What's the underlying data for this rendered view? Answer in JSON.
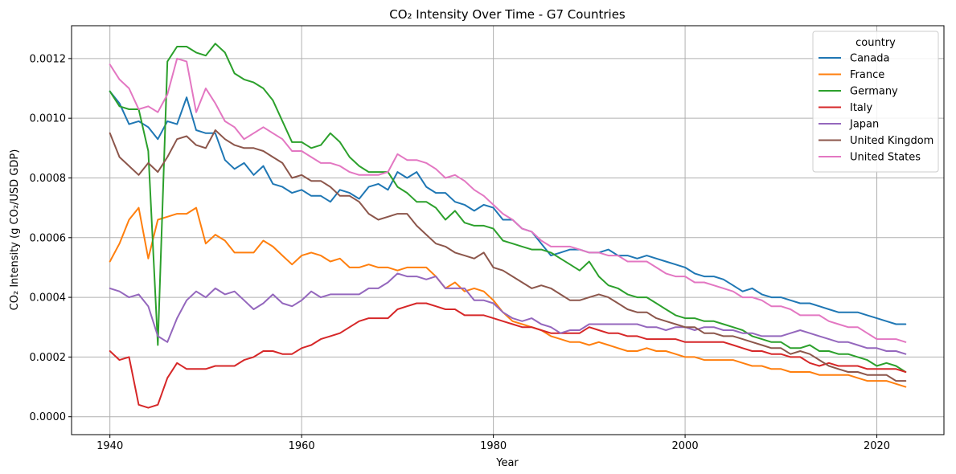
{
  "chart_data": {
    "type": "line",
    "title": "CO₂ Intensity Over Time - G7 Countries",
    "xlabel": "Year",
    "ylabel": "CO₂ Intensity (g CO₂/USD GDP)",
    "xlim": [
      1936,
      2027
    ],
    "ylim": [
      -6e-05,
      0.00131
    ],
    "xticks": [
      1940,
      1960,
      1980,
      2000,
      2020
    ],
    "yticks": [
      0.0,
      0.0002,
      0.0004,
      0.0006,
      0.0008,
      0.001,
      0.0012
    ],
    "ytick_labels": [
      "0.0000",
      "0.0002",
      "0.0004",
      "0.0006",
      "0.0008",
      "0.0010",
      "0.0012"
    ],
    "grid": true,
    "legend": {
      "title": "country",
      "placement": "top-right"
    },
    "x": [
      1940,
      1941,
      1942,
      1943,
      1944,
      1945,
      1946,
      1947,
      1948,
      1949,
      1950,
      1951,
      1952,
      1953,
      1954,
      1955,
      1956,
      1957,
      1958,
      1959,
      1960,
      1961,
      1962,
      1963,
      1964,
      1965,
      1966,
      1967,
      1968,
      1969,
      1970,
      1971,
      1972,
      1973,
      1974,
      1975,
      1976,
      1977,
      1978,
      1979,
      1980,
      1981,
      1982,
      1983,
      1984,
      1985,
      1986,
      1987,
      1988,
      1989,
      1990,
      1991,
      1992,
      1993,
      1994,
      1995,
      1996,
      1997,
      1998,
      1999,
      2000,
      2001,
      2002,
      2003,
      2004,
      2005,
      2006,
      2007,
      2008,
      2009,
      2010,
      2011,
      2012,
      2013,
      2014,
      2015,
      2016,
      2017,
      2018,
      2019,
      2020,
      2021,
      2022,
      2023
    ],
    "series": [
      {
        "name": "Canada",
        "color": "#1f77b4",
        "values": [
          0.00109,
          0.00105,
          0.00098,
          0.00099,
          0.00097,
          0.00093,
          0.00099,
          0.00098,
          0.00107,
          0.00096,
          0.00095,
          0.00095,
          0.00086,
          0.00083,
          0.00085,
          0.00081,
          0.00084,
          0.00078,
          0.00077,
          0.00075,
          0.00076,
          0.00074,
          0.00074,
          0.00072,
          0.00076,
          0.00075,
          0.00073,
          0.00077,
          0.00078,
          0.00076,
          0.00082,
          0.0008,
          0.00082,
          0.00077,
          0.00075,
          0.00075,
          0.00072,
          0.00071,
          0.00069,
          0.00071,
          0.0007,
          0.00066,
          0.00066,
          0.00063,
          0.00062,
          0.00058,
          0.00054,
          0.00055,
          0.00056,
          0.00056,
          0.00055,
          0.00055,
          0.00056,
          0.00054,
          0.00054,
          0.00053,
          0.00054,
          0.00053,
          0.00052,
          0.00051,
          0.0005,
          0.00048,
          0.00047,
          0.00047,
          0.00046,
          0.00044,
          0.00042,
          0.00043,
          0.00041,
          0.0004,
          0.0004,
          0.00039,
          0.00038,
          0.00038,
          0.00037,
          0.00036,
          0.00035,
          0.00035,
          0.00035,
          0.00034,
          0.00033,
          0.00032,
          0.00031,
          0.00031
        ]
      },
      {
        "name": "France",
        "color": "#ff7f0e",
        "values": [
          0.00052,
          0.00058,
          0.00066,
          0.0007,
          0.00053,
          0.00066,
          0.00067,
          0.00068,
          0.00068,
          0.0007,
          0.00058,
          0.00061,
          0.00059,
          0.00055,
          0.00055,
          0.00055,
          0.00059,
          0.00057,
          0.00054,
          0.00051,
          0.00054,
          0.00055,
          0.00054,
          0.00052,
          0.00053,
          0.0005,
          0.0005,
          0.00051,
          0.0005,
          0.0005,
          0.00049,
          0.0005,
          0.0005,
          0.0005,
          0.00047,
          0.00043,
          0.00045,
          0.00042,
          0.00043,
          0.00042,
          0.00039,
          0.00035,
          0.00032,
          0.00031,
          0.0003,
          0.00029,
          0.00027,
          0.00026,
          0.00025,
          0.00025,
          0.00024,
          0.00025,
          0.00024,
          0.00023,
          0.00022,
          0.00022,
          0.00023,
          0.00022,
          0.00022,
          0.00021,
          0.0002,
          0.0002,
          0.00019,
          0.00019,
          0.00019,
          0.00019,
          0.00018,
          0.00017,
          0.00017,
          0.00016,
          0.00016,
          0.00015,
          0.00015,
          0.00015,
          0.00014,
          0.00014,
          0.00014,
          0.00014,
          0.00013,
          0.00012,
          0.00012,
          0.00012,
          0.00011,
          0.0001
        ]
      },
      {
        "name": "Germany",
        "color": "#2ca02c",
        "values": [
          0.00109,
          0.00104,
          0.00103,
          0.00103,
          0.00089,
          0.00024,
          0.00119,
          0.00124,
          0.00124,
          0.00122,
          0.00121,
          0.00125,
          0.00122,
          0.00115,
          0.00113,
          0.00112,
          0.0011,
          0.00106,
          0.00099,
          0.00092,
          0.00092,
          0.0009,
          0.00091,
          0.00095,
          0.00092,
          0.00087,
          0.00084,
          0.00082,
          0.00082,
          0.00082,
          0.00077,
          0.00075,
          0.00072,
          0.00072,
          0.0007,
          0.00066,
          0.00069,
          0.00065,
          0.00064,
          0.00064,
          0.00063,
          0.00059,
          0.00058,
          0.00057,
          0.00056,
          0.00056,
          0.00055,
          0.00053,
          0.00051,
          0.00049,
          0.00052,
          0.00047,
          0.00044,
          0.00043,
          0.00041,
          0.0004,
          0.0004,
          0.00038,
          0.00036,
          0.00034,
          0.00033,
          0.00033,
          0.00032,
          0.00032,
          0.00031,
          0.0003,
          0.00029,
          0.00027,
          0.00026,
          0.00025,
          0.00025,
          0.00023,
          0.00023,
          0.00024,
          0.00022,
          0.00022,
          0.00021,
          0.00021,
          0.0002,
          0.00019,
          0.00017,
          0.00018,
          0.00017,
          0.00015
        ]
      },
      {
        "name": "Italy",
        "color": "#d62728",
        "values": [
          0.00022,
          0.00019,
          0.0002,
          4e-05,
          3e-05,
          4e-05,
          0.00013,
          0.00018,
          0.00016,
          0.00016,
          0.00016,
          0.00017,
          0.00017,
          0.00017,
          0.00019,
          0.0002,
          0.00022,
          0.00022,
          0.00021,
          0.00021,
          0.00023,
          0.00024,
          0.00026,
          0.00027,
          0.00028,
          0.0003,
          0.00032,
          0.00033,
          0.00033,
          0.00033,
          0.00036,
          0.00037,
          0.00038,
          0.00038,
          0.00037,
          0.00036,
          0.00036,
          0.00034,
          0.00034,
          0.00034,
          0.00033,
          0.00032,
          0.00031,
          0.0003,
          0.0003,
          0.00029,
          0.00028,
          0.00028,
          0.00028,
          0.00028,
          0.0003,
          0.00029,
          0.00028,
          0.00028,
          0.00027,
          0.00027,
          0.00026,
          0.00026,
          0.00026,
          0.00026,
          0.00025,
          0.00025,
          0.00025,
          0.00025,
          0.00025,
          0.00024,
          0.00023,
          0.00022,
          0.00022,
          0.00021,
          0.00021,
          0.0002,
          0.0002,
          0.00018,
          0.00017,
          0.00018,
          0.00017,
          0.00017,
          0.00017,
          0.00016,
          0.00016,
          0.00016,
          0.00016,
          0.00015
        ]
      },
      {
        "name": "Japan",
        "color": "#9467bd",
        "values": [
          0.00043,
          0.00042,
          0.0004,
          0.00041,
          0.00037,
          0.00027,
          0.00025,
          0.00033,
          0.00039,
          0.00042,
          0.0004,
          0.00043,
          0.00041,
          0.00042,
          0.00039,
          0.00036,
          0.00038,
          0.00041,
          0.00038,
          0.00037,
          0.00039,
          0.00042,
          0.0004,
          0.00041,
          0.00041,
          0.00041,
          0.00041,
          0.00043,
          0.00043,
          0.00045,
          0.00048,
          0.00047,
          0.00047,
          0.00046,
          0.00047,
          0.00043,
          0.00043,
          0.00043,
          0.00039,
          0.00039,
          0.00038,
          0.00035,
          0.00033,
          0.00032,
          0.00033,
          0.00031,
          0.0003,
          0.00028,
          0.00029,
          0.00029,
          0.00031,
          0.00031,
          0.00031,
          0.00031,
          0.00031,
          0.00031,
          0.0003,
          0.0003,
          0.00029,
          0.0003,
          0.0003,
          0.00029,
          0.0003,
          0.0003,
          0.00029,
          0.00029,
          0.00028,
          0.00028,
          0.00027,
          0.00027,
          0.00027,
          0.00028,
          0.00029,
          0.00028,
          0.00027,
          0.00026,
          0.00025,
          0.00025,
          0.00024,
          0.00023,
          0.00023,
          0.00022,
          0.00022,
          0.00021
        ]
      },
      {
        "name": "United Kingdom",
        "color": "#8c564b",
        "values": [
          0.00095,
          0.00087,
          0.00084,
          0.00081,
          0.00085,
          0.00082,
          0.00087,
          0.00093,
          0.00094,
          0.00091,
          0.0009,
          0.00096,
          0.00093,
          0.00091,
          0.0009,
          0.0009,
          0.00089,
          0.00087,
          0.00085,
          0.0008,
          0.00081,
          0.00079,
          0.00079,
          0.00077,
          0.00074,
          0.00074,
          0.00072,
          0.00068,
          0.00066,
          0.00067,
          0.00068,
          0.00068,
          0.00064,
          0.00061,
          0.00058,
          0.00057,
          0.00055,
          0.00054,
          0.00053,
          0.00055,
          0.0005,
          0.00049,
          0.00047,
          0.00045,
          0.00043,
          0.00044,
          0.00043,
          0.00041,
          0.00039,
          0.00039,
          0.0004,
          0.00041,
          0.0004,
          0.00038,
          0.00036,
          0.00035,
          0.00035,
          0.00033,
          0.00032,
          0.00031,
          0.0003,
          0.0003,
          0.00028,
          0.00028,
          0.00027,
          0.00027,
          0.00026,
          0.00025,
          0.00024,
          0.00023,
          0.00023,
          0.00021,
          0.00022,
          0.00021,
          0.00019,
          0.00017,
          0.00016,
          0.00015,
          0.00015,
          0.00014,
          0.00014,
          0.00014,
          0.00012,
          0.00012
        ]
      },
      {
        "name": "United States",
        "color": "#e377c2",
        "values": [
          0.00118,
          0.00113,
          0.0011,
          0.00103,
          0.00104,
          0.00102,
          0.00108,
          0.0012,
          0.00119,
          0.00102,
          0.0011,
          0.00105,
          0.00099,
          0.00097,
          0.00093,
          0.00095,
          0.00097,
          0.00095,
          0.00093,
          0.00089,
          0.00089,
          0.00087,
          0.00085,
          0.00085,
          0.00084,
          0.00082,
          0.00081,
          0.00081,
          0.00081,
          0.00082,
          0.00088,
          0.00086,
          0.00086,
          0.00085,
          0.00083,
          0.0008,
          0.00081,
          0.00079,
          0.00076,
          0.00074,
          0.00071,
          0.00068,
          0.00066,
          0.00063,
          0.00062,
          0.00059,
          0.00057,
          0.00057,
          0.00057,
          0.00056,
          0.00055,
          0.00055,
          0.00054,
          0.00054,
          0.00052,
          0.00052,
          0.00052,
          0.0005,
          0.00048,
          0.00047,
          0.00047,
          0.00045,
          0.00045,
          0.00044,
          0.00043,
          0.00042,
          0.0004,
          0.0004,
          0.00039,
          0.00037,
          0.00037,
          0.00036,
          0.00034,
          0.00034,
          0.00034,
          0.00032,
          0.00031,
          0.0003,
          0.0003,
          0.00028,
          0.00026,
          0.00026,
          0.00026,
          0.00025
        ]
      }
    ]
  }
}
